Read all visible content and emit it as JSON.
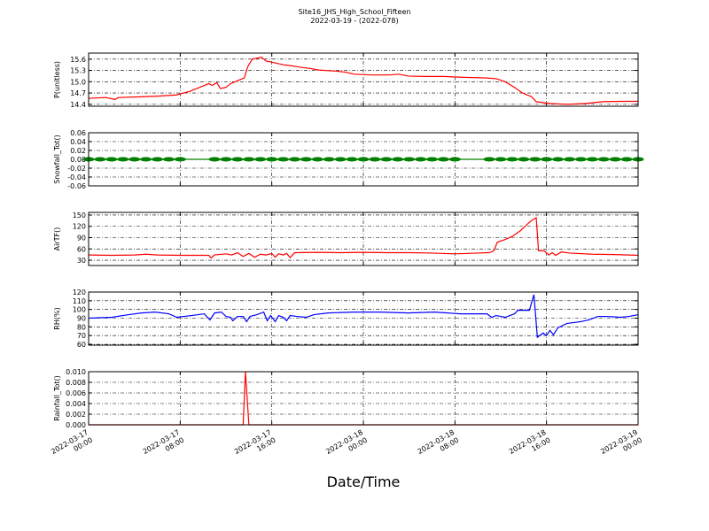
{
  "chart_data": [
    {
      "type": "line",
      "title": "Site16_JHS_High_School_Fifteen",
      "subtitle": "2022-03-19 - (2022-078)",
      "ylabel": "P(unitless)",
      "color": "#ff0000",
      "grid": true,
      "xlim": [
        "2022-03-17 00:00",
        "2022-03-19 00:00"
      ],
      "xticks": [
        "2022-03-17 00:00",
        "2022-03-17 08:00",
        "2022-03-17 16:00",
        "2022-03-18 00:00",
        "2022-03-18 08:00",
        "2022-03-18 16:00",
        "2022-03-19 00:00"
      ],
      "ylim": [
        14.35,
        15.76
      ],
      "yticks": [
        14.4,
        14.7,
        {
          "value": 15.0,
          "label": "15.0"
        },
        15.3,
        15.6
      ],
      "x": [
        "2022-03-17 00:00",
        "2022-03-17 01:30",
        "2022-03-17 02:18",
        "2022-03-17 02:36",
        "2022-03-17 04:36",
        "2022-03-17 06:12",
        "2022-03-17 07:42",
        "2022-03-17 08:54",
        "2022-03-17 10:30",
        "2022-03-17 10:48",
        "2022-03-17 11:12",
        "2022-03-17 11:30",
        "2022-03-17 12:00",
        "2022-03-17 12:24",
        "2022-03-17 13:12",
        "2022-03-17 13:36",
        "2022-03-17 13:54",
        "2022-03-17 14:18",
        "2022-03-17 15:06",
        "2022-03-17 15:30",
        "2022-03-17 16:18",
        "2022-03-17 17:00",
        "2022-03-17 17:48",
        "2022-03-17 18:36",
        "2022-03-17 19:24",
        "2022-03-17 20:06",
        "2022-03-17 21:42",
        "2022-03-17 22:30",
        "2022-03-17 23:12",
        "2022-03-18 00:48",
        "2022-03-18 02:18",
        "2022-03-18 03:06",
        "2022-03-18 03:54",
        "2022-03-18 05:24",
        "2022-03-18 07:00",
        "2022-03-18 08:30",
        "2022-03-18 10:48",
        "2022-03-18 11:36",
        "2022-03-18 12:24",
        "2022-03-18 13:12",
        "2022-03-18 13:54",
        "2022-03-18 14:42",
        "2022-03-18 15:06",
        "2022-03-18 16:18",
        "2022-03-18 17:48",
        "2022-03-18 19:24",
        "2022-03-18 20:54",
        "2022-03-18 22:30",
        "2022-03-19 00:00"
      ],
      "values": [
        14.56,
        14.58,
        14.53,
        14.58,
        14.6,
        14.62,
        14.65,
        14.75,
        14.95,
        14.9,
        14.98,
        14.82,
        14.85,
        14.95,
        15.05,
        15.1,
        15.4,
        15.6,
        15.65,
        15.55,
        15.5,
        15.45,
        15.42,
        15.38,
        15.35,
        15.31,
        15.28,
        15.25,
        15.2,
        15.18,
        15.18,
        15.2,
        15.15,
        15.14,
        15.14,
        15.12,
        15.1,
        15.08,
        15.0,
        14.85,
        14.7,
        14.6,
        14.47,
        14.42,
        14.4,
        14.42,
        14.47,
        14.48,
        14.48
      ]
    },
    {
      "type": "line",
      "ylabel": "Snowfall_Tot()",
      "color": "#008000",
      "markers": true,
      "grid": true,
      "xlim": [
        "2022-03-17 00:00",
        "2022-03-19 00:00"
      ],
      "xticks": [
        "2022-03-17 00:00",
        "2022-03-17 08:00",
        "2022-03-17 16:00",
        "2022-03-18 00:00",
        "2022-03-18 08:00",
        "2022-03-18 16:00",
        "2022-03-19 00:00"
      ],
      "ylim": [
        -0.06,
        0.06
      ],
      "yticks": [
        -0.06,
        -0.04,
        -0.02,
        {
          "value": 0,
          "label": "0.00"
        },
        0.02,
        0.04,
        0.06
      ],
      "x": [
        "2022-03-17 00:00",
        "2022-03-17 01:00",
        "2022-03-17 02:00",
        "2022-03-17 03:00",
        "2022-03-17 04:00",
        "2022-03-17 05:00",
        "2022-03-17 06:00",
        "2022-03-17 07:00",
        "2022-03-17 08:00",
        "2022-03-17 11:00",
        "2022-03-17 12:00",
        "2022-03-17 13:00",
        "2022-03-17 14:00",
        "2022-03-17 15:00",
        "2022-03-17 16:00",
        "2022-03-17 17:00",
        "2022-03-17 18:00",
        "2022-03-17 19:00",
        "2022-03-17 20:00",
        "2022-03-17 21:00",
        "2022-03-17 22:00",
        "2022-03-17 23:00",
        "2022-03-18 00:00",
        "2022-03-18 01:00",
        "2022-03-18 02:00",
        "2022-03-18 03:00",
        "2022-03-18 04:00",
        "2022-03-18 05:00",
        "2022-03-18 06:00",
        "2022-03-18 07:00",
        "2022-03-18 08:00",
        "2022-03-18 11:00",
        "2022-03-18 12:00",
        "2022-03-18 13:00",
        "2022-03-18 14:00",
        "2022-03-18 15:00",
        "2022-03-18 16:00",
        "2022-03-18 17:00",
        "2022-03-18 18:00",
        "2022-03-18 19:00",
        "2022-03-18 20:00",
        "2022-03-18 21:00",
        "2022-03-18 22:00",
        "2022-03-18 23:00",
        "2022-03-19 00:00"
      ],
      "values": [
        0,
        0,
        0,
        0,
        0,
        0,
        0,
        0,
        0,
        0,
        0,
        0,
        0,
        0,
        0,
        0,
        0,
        0,
        0,
        0,
        0,
        0,
        0,
        0,
        0,
        0,
        0,
        0,
        0,
        0,
        0,
        0,
        0,
        0,
        0,
        0,
        0,
        0,
        0,
        0,
        0,
        0,
        0,
        0,
        0
      ]
    },
    {
      "type": "line",
      "ylabel": "AirTF()",
      "color": "#ff0000",
      "grid": true,
      "xlim": [
        "2022-03-17 00:00",
        "2022-03-19 00:00"
      ],
      "xticks": [
        "2022-03-17 00:00",
        "2022-03-17 08:00",
        "2022-03-17 16:00",
        "2022-03-18 00:00",
        "2022-03-18 08:00",
        "2022-03-18 16:00",
        "2022-03-19 00:00"
      ],
      "ylim": [
        16,
        157
      ],
      "yticks": [
        30,
        60,
        90,
        120,
        150
      ],
      "x": [
        "2022-03-17 00:00",
        "2022-03-17 02:00",
        "2022-03-17 04:00",
        "2022-03-17 05:00",
        "2022-03-17 06:00",
        "2022-03-17 08:00",
        "2022-03-17 10:30",
        "2022-03-17 10:42",
        "2022-03-17 11:00",
        "2022-03-17 12:00",
        "2022-03-17 12:30",
        "2022-03-17 13:00",
        "2022-03-17 13:30",
        "2022-03-17 14:00",
        "2022-03-17 14:30",
        "2022-03-17 15:00",
        "2022-03-17 15:30",
        "2022-03-17 16:00",
        "2022-03-17 16:18",
        "2022-03-17 16:36",
        "2022-03-17 17:00",
        "2022-03-17 17:18",
        "2022-03-17 17:36",
        "2022-03-17 18:00",
        "2022-03-17 20:00",
        "2022-03-17 22:00",
        "2022-03-18 00:00",
        "2022-03-18 02:00",
        "2022-03-18 04:00",
        "2022-03-18 06:00",
        "2022-03-18 08:00",
        "2022-03-18 10:00",
        "2022-03-18 11:00",
        "2022-03-18 11:24",
        "2022-03-18 11:42",
        "2022-03-18 12:18",
        "2022-03-18 13:00",
        "2022-03-18 13:42",
        "2022-03-18 14:18",
        "2022-03-18 14:42",
        "2022-03-18 15:06",
        "2022-03-18 15:18",
        "2022-03-18 15:48",
        "2022-03-18 16:12",
        "2022-03-18 16:30",
        "2022-03-18 16:48",
        "2022-03-18 17:18",
        "2022-03-18 18:00",
        "2022-03-18 20:00",
        "2022-03-18 22:00",
        "2022-03-19 00:00"
      ],
      "values": [
        44,
        43,
        44,
        46,
        44,
        43,
        43,
        36,
        44,
        47,
        44,
        50,
        40,
        48,
        38,
        46,
        44,
        48,
        38,
        47,
        44,
        48,
        37,
        50,
        51,
        50,
        51,
        50,
        50,
        49,
        47,
        49,
        50,
        55,
        78,
        84,
        93,
        108,
        125,
        136,
        143,
        55,
        55,
        44,
        50,
        43,
        52,
        49,
        46,
        45,
        43
      ]
    },
    {
      "type": "line",
      "ylabel": "RH(%)",
      "color": "#0000ff",
      "grid": true,
      "xlim": [
        "2022-03-17 00:00",
        "2022-03-19 00:00"
      ],
      "xticks": [
        "2022-03-17 00:00",
        "2022-03-17 08:00",
        "2022-03-17 16:00",
        "2022-03-18 00:00",
        "2022-03-18 08:00",
        "2022-03-18 16:00",
        "2022-03-19 00:00"
      ],
      "ylim": [
        59,
        120
      ],
      "yticks": [
        60,
        70,
        80,
        90,
        100,
        110,
        120
      ],
      "x": [
        "2022-03-17 00:00",
        "2022-03-17 02:00",
        "2022-03-17 03:30",
        "2022-03-17 04:36",
        "2022-03-17 05:48",
        "2022-03-17 07:00",
        "2022-03-17 07:42",
        "2022-03-17 09:00",
        "2022-03-17 10:06",
        "2022-03-17 10:36",
        "2022-03-17 11:00",
        "2022-03-17 11:36",
        "2022-03-17 12:00",
        "2022-03-17 12:24",
        "2022-03-17 12:36",
        "2022-03-17 13:00",
        "2022-03-17 13:30",
        "2022-03-17 13:48",
        "2022-03-17 14:06",
        "2022-03-17 14:42",
        "2022-03-17 15:18",
        "2022-03-17 15:36",
        "2022-03-17 15:54",
        "2022-03-17 16:18",
        "2022-03-17 16:36",
        "2022-03-17 17:00",
        "2022-03-17 17:18",
        "2022-03-17 17:36",
        "2022-03-17 18:12",
        "2022-03-17 19:00",
        "2022-03-17 19:42",
        "2022-03-17 20:54",
        "2022-03-17 23:12",
        "2022-03-18 01:30",
        "2022-03-18 03:54",
        "2022-03-18 06:12",
        "2022-03-18 08:30",
        "2022-03-18 10:48",
        "2022-03-18 11:12",
        "2022-03-18 11:36",
        "2022-03-18 12:24",
        "2022-03-18 13:12",
        "2022-03-18 13:30",
        "2022-03-18 14:30",
        "2022-03-18 14:54",
        "2022-03-18 15:12",
        "2022-03-18 15:42",
        "2022-03-18 16:00",
        "2022-03-18 16:18",
        "2022-03-18 16:36",
        "2022-03-18 17:00",
        "2022-03-18 17:48",
        "2022-03-18 19:00",
        "2022-03-18 19:42",
        "2022-03-18 20:30",
        "2022-03-18 21:18",
        "2022-03-18 22:30",
        "2022-03-18 23:12",
        "2022-03-19 00:00"
      ],
      "values": [
        90,
        91,
        94,
        96,
        97,
        95,
        91,
        93,
        95,
        88,
        96,
        97,
        92,
        91,
        87,
        92,
        92,
        86,
        92,
        94,
        97,
        87,
        93,
        86,
        93,
        91,
        87,
        93,
        92,
        91,
        94,
        96,
        97,
        97,
        96,
        97,
        95,
        95,
        91,
        93,
        91,
        95,
        99,
        99,
        117,
        68,
        73,
        70,
        76,
        71,
        79,
        84,
        86,
        88,
        92,
        92,
        91,
        92,
        94
      ]
    },
    {
      "type": "line",
      "ylabel": "Rainfall_Tot()",
      "xlabel": "Date/Time",
      "color": "#ff0000",
      "grid": true,
      "xlim": [
        "2022-03-17 00:00",
        "2022-03-19 00:00"
      ],
      "xticks": [
        "2022-03-17 00:00",
        "2022-03-17 08:00",
        "2022-03-17 16:00",
        "2022-03-18 00:00",
        "2022-03-18 08:00",
        "2022-03-18 16:00",
        "2022-03-19 00:00"
      ],
      "ylim": [
        0,
        0.01
      ],
      "yticks": [
        {
          "value": 0,
          "label": "0.000"
        },
        0.002,
        0.004,
        0.006,
        0.008,
        {
          "value": 0.01,
          "label": "0.010"
        }
      ],
      "x": [
        "2022-03-17 00:00",
        "2022-03-17 13:30",
        "2022-03-17 13:42",
        "2022-03-17 14:00",
        "2022-03-19 00:00"
      ],
      "values": [
        0,
        0,
        0.01,
        0,
        0
      ]
    }
  ]
}
